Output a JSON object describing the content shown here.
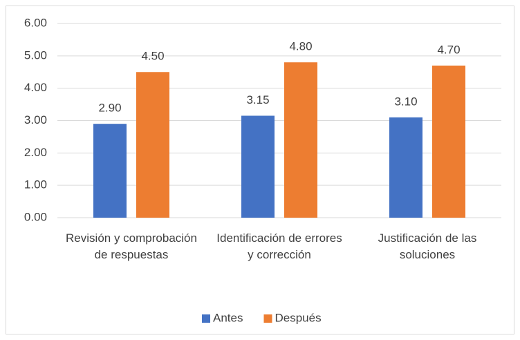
{
  "chart_data": {
    "type": "bar",
    "categories": [
      "Revisión y comprobación de respuestas",
      "Identificación de errores y corrección",
      "Justificación de las soluciones"
    ],
    "series": [
      {
        "name": "Antes",
        "color": "#4472c4",
        "values": [
          2.9,
          3.15,
          3.1
        ],
        "value_labels": [
          "2.90",
          "3.15",
          "3.10"
        ]
      },
      {
        "name": "Después",
        "color": "#ed7d31",
        "values": [
          4.5,
          4.8,
          4.7
        ],
        "value_labels": [
          "4.50",
          "4.80",
          "4.70"
        ]
      }
    ],
    "ylim": [
      0,
      6
    ],
    "yticks": [
      {
        "value": 0,
        "label": "0.00"
      },
      {
        "value": 1,
        "label": "1.00"
      },
      {
        "value": 2,
        "label": "2.00"
      },
      {
        "value": 3,
        "label": "3.00"
      },
      {
        "value": 4,
        "label": "4.00"
      },
      {
        "value": 5,
        "label": "5.00"
      },
      {
        "value": 6,
        "label": "6.00"
      }
    ],
    "grid": true,
    "legend": "bottom"
  }
}
